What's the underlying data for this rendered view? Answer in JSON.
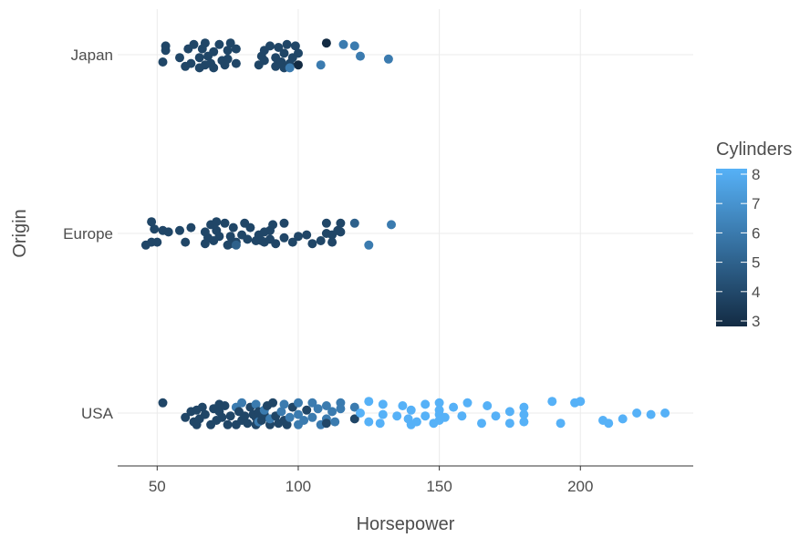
{
  "chart_data": {
    "type": "scatter",
    "title": "",
    "xlabel": "Horsepower",
    "ylabel": "Origin",
    "xlim": [
      36,
      240
    ],
    "x_ticks": [
      50,
      100,
      150,
      200
    ],
    "categories": [
      "USA",
      "Europe",
      "Japan"
    ],
    "grid": true,
    "legend": {
      "title": "Cylinders",
      "placement": "right",
      "min": 3,
      "max": 8,
      "ticks": [
        3,
        4,
        5,
        6,
        7,
        8
      ],
      "color_low": "#132b43",
      "color_high": "#56b1f7"
    },
    "series": [
      {
        "name": "Japan",
        "points": [
          [
            52,
            4,
            0.25
          ],
          [
            53,
            4,
            -0.15
          ],
          [
            53,
            4,
            -0.3
          ],
          [
            58,
            4,
            0.1
          ],
          [
            60,
            4,
            0.4
          ],
          [
            61,
            4,
            -0.2
          ],
          [
            62,
            4,
            0.3
          ],
          [
            63,
            4,
            -0.35
          ],
          [
            65,
            4,
            0.45
          ],
          [
            65,
            4,
            0.1
          ],
          [
            66,
            4,
            -0.2
          ],
          [
            67,
            4,
            0.35
          ],
          [
            67,
            4,
            -0.4
          ],
          [
            68,
            4,
            0.05
          ],
          [
            69,
            4,
            0.3
          ],
          [
            70,
            4,
            -0.1
          ],
          [
            70,
            4,
            0.45
          ],
          [
            72,
            4,
            -0.35
          ],
          [
            73,
            4,
            0.2
          ],
          [
            74,
            4,
            0.35
          ],
          [
            75,
            4,
            -0.15
          ],
          [
            75,
            4,
            0.15
          ],
          [
            76,
            4,
            -0.4
          ],
          [
            78,
            4,
            -0.2
          ],
          [
            78,
            4,
            0.3
          ],
          [
            86,
            4,
            0.35
          ],
          [
            87,
            4,
            0.05
          ],
          [
            88,
            4,
            -0.15
          ],
          [
            88,
            4,
            0.2
          ],
          [
            90,
            4,
            -0.3
          ],
          [
            92,
            4,
            0.4
          ],
          [
            92,
            4,
            0.1
          ],
          [
            93,
            4,
            -0.25
          ],
          [
            94,
            4,
            0.25
          ],
          [
            95,
            4,
            -0.05
          ],
          [
            95,
            4,
            0.45
          ],
          [
            96,
            4,
            -0.35
          ],
          [
            97,
            4,
            0.3
          ],
          [
            97,
            6,
            0.45
          ],
          [
            98,
            4,
            0.1
          ],
          [
            99,
            4,
            -0.3
          ],
          [
            100,
            3,
            0.35
          ],
          [
            100,
            4,
            -0.05
          ],
          [
            108,
            6,
            0.35
          ],
          [
            110,
            3,
            -0.4
          ],
          [
            116,
            6,
            -0.35
          ],
          [
            120,
            6,
            -0.3
          ],
          [
            122,
            6,
            0.05
          ],
          [
            132,
            6,
            0.15
          ]
        ]
      },
      {
        "name": "Europe",
        "points": [
          [
            46,
            4,
            0.4
          ],
          [
            48,
            4,
            0.3
          ],
          [
            48,
            4,
            -0.4
          ],
          [
            49,
            4,
            -0.15
          ],
          [
            50,
            4,
            0.3
          ],
          [
            52,
            4,
            -0.1
          ],
          [
            54,
            4,
            -0.05
          ],
          [
            58,
            4,
            -0.1
          ],
          [
            60,
            4,
            0.3
          ],
          [
            62,
            4,
            -0.2
          ],
          [
            67,
            4,
            0.35
          ],
          [
            67,
            4,
            -0.05
          ],
          [
            68,
            4,
            0.15
          ],
          [
            69,
            4,
            -0.3
          ],
          [
            70,
            4,
            0.25
          ],
          [
            71,
            4,
            -0.1
          ],
          [
            71,
            4,
            -0.4
          ],
          [
            72,
            4,
            0.1
          ],
          [
            74,
            4,
            -0.35
          ],
          [
            75,
            4,
            0.4
          ],
          [
            76,
            4,
            0.35
          ],
          [
            76,
            4,
            0.1
          ],
          [
            77,
            4,
            -0.2
          ],
          [
            78,
            4,
            0.3
          ],
          [
            78,
            5,
            0.4
          ],
          [
            80,
            4,
            0.05
          ],
          [
            81,
            4,
            -0.35
          ],
          [
            82,
            4,
            0.2
          ],
          [
            83,
            4,
            -0.2
          ],
          [
            85,
            4,
            0.25
          ],
          [
            86,
            4,
            0.05
          ],
          [
            87,
            4,
            0.25
          ],
          [
            88,
            4,
            -0.05
          ],
          [
            88,
            4,
            0.3
          ],
          [
            90,
            4,
            0.2
          ],
          [
            90,
            4,
            -0.1
          ],
          [
            91,
            4,
            -0.3
          ],
          [
            92,
            4,
            0.35
          ],
          [
            95,
            4,
            0.15
          ],
          [
            95,
            4,
            -0.35
          ],
          [
            98,
            4,
            0.3
          ],
          [
            100,
            4,
            0.1
          ],
          [
            103,
            4,
            0.05
          ],
          [
            105,
            4,
            0.35
          ],
          [
            108,
            4,
            0.25
          ],
          [
            110,
            4,
            -0.35
          ],
          [
            110,
            4,
            0.0
          ],
          [
            112,
            4,
            0.3
          ],
          [
            112,
            4,
            0.05
          ],
          [
            114,
            4,
            -0.1
          ],
          [
            115,
            4,
            -0.35
          ],
          [
            115,
            4,
            -0.05
          ],
          [
            120,
            5,
            -0.35
          ],
          [
            125,
            6,
            0.4
          ],
          [
            133,
            6,
            -0.3
          ]
        ]
      },
      {
        "name": "USA",
        "points": [
          [
            52,
            4,
            -0.35
          ],
          [
            60,
            4,
            0.15
          ],
          [
            62,
            4,
            -0.05
          ],
          [
            63,
            4,
            0.3
          ],
          [
            64,
            4,
            0.4
          ],
          [
            64,
            4,
            -0.1
          ],
          [
            65,
            4,
            0.2
          ],
          [
            66,
            4,
            -0.2
          ],
          [
            67,
            4,
            0.05
          ],
          [
            69,
            4,
            0.4
          ],
          [
            70,
            4,
            -0.15
          ],
          [
            71,
            4,
            0.25
          ],
          [
            72,
            4,
            -0.3
          ],
          [
            72,
            4,
            -0.05
          ],
          [
            73,
            4,
            0.15
          ],
          [
            74,
            4,
            -0.25
          ],
          [
            75,
            4,
            0.4
          ],
          [
            76,
            4,
            0.1
          ],
          [
            78,
            4,
            0.4
          ],
          [
            78,
            6,
            -0.2
          ],
          [
            79,
            4,
            -0.05
          ],
          [
            80,
            4,
            0.25
          ],
          [
            80,
            6,
            -0.35
          ],
          [
            81,
            4,
            0.1
          ],
          [
            82,
            4,
            0.35
          ],
          [
            83,
            4,
            -0.2
          ],
          [
            84,
            4,
            0.05
          ],
          [
            85,
            4,
            0.4
          ],
          [
            85,
            4,
            0.15
          ],
          [
            85,
            6,
            -0.3
          ],
          [
            86,
            4,
            -0.05
          ],
          [
            86,
            6,
            0.3
          ],
          [
            87,
            4,
            0.25
          ],
          [
            88,
            4,
            0.05
          ],
          [
            88,
            6,
            -0.1
          ],
          [
            89,
            4,
            -0.25
          ],
          [
            90,
            4,
            0.4
          ],
          [
            90,
            6,
            0.2
          ],
          [
            91,
            4,
            -0.35
          ],
          [
            92,
            4,
            0.1
          ],
          [
            93,
            4,
            0.35
          ],
          [
            94,
            6,
            -0.05
          ],
          [
            95,
            4,
            0.25
          ],
          [
            95,
            6,
            -0.3
          ],
          [
            96,
            4,
            0.4
          ],
          [
            97,
            6,
            0.15
          ],
          [
            98,
            4,
            -0.2
          ],
          [
            100,
            6,
            0.4
          ],
          [
            100,
            6,
            0.05
          ],
          [
            100,
            6,
            -0.35
          ],
          [
            102,
            6,
            0.25
          ],
          [
            103,
            4,
            -0.1
          ],
          [
            105,
            6,
            -0.35
          ],
          [
            105,
            6,
            0.15
          ],
          [
            107,
            6,
            -0.15
          ],
          [
            108,
            6,
            0.4
          ],
          [
            110,
            6,
            0.2
          ],
          [
            110,
            6,
            -0.25
          ],
          [
            110,
            4,
            0.35
          ],
          [
            112,
            6,
            -0.05
          ],
          [
            113,
            6,
            0.3
          ],
          [
            115,
            6,
            -0.35
          ],
          [
            115,
            6,
            -0.15
          ],
          [
            120,
            4,
            0.2
          ],
          [
            120,
            6,
            -0.2
          ],
          [
            122,
            8,
            0.0
          ],
          [
            125,
            8,
            -0.4
          ],
          [
            125,
            8,
            0.3
          ],
          [
            129,
            8,
            0.35
          ],
          [
            130,
            8,
            0.05
          ],
          [
            130,
            8,
            -0.3
          ],
          [
            135,
            8,
            0.1
          ],
          [
            137,
            8,
            -0.25
          ],
          [
            139,
            8,
            0.2
          ],
          [
            140,
            8,
            0.4
          ],
          [
            140,
            8,
            -0.1
          ],
          [
            142,
            8,
            0.3
          ],
          [
            145,
            8,
            -0.3
          ],
          [
            145,
            8,
            0.1
          ],
          [
            148,
            8,
            0.35
          ],
          [
            150,
            8,
            0.05
          ],
          [
            150,
            8,
            0.25
          ],
          [
            150,
            8,
            -0.1
          ],
          [
            150,
            8,
            -0.35
          ],
          [
            152,
            8,
            0.15
          ],
          [
            155,
            8,
            -0.2
          ],
          [
            158,
            8,
            0.1
          ],
          [
            160,
            8,
            -0.35
          ],
          [
            165,
            8,
            0.35
          ],
          [
            167,
            8,
            -0.25
          ],
          [
            170,
            8,
            0.1
          ],
          [
            175,
            8,
            0.35
          ],
          [
            175,
            8,
            -0.05
          ],
          [
            180,
            8,
            0.3
          ],
          [
            180,
            8,
            0.05
          ],
          [
            180,
            8,
            -0.2
          ],
          [
            190,
            8,
            -0.4
          ],
          [
            193,
            8,
            0.35
          ],
          [
            198,
            8,
            -0.35
          ],
          [
            200,
            8,
            -0.4
          ],
          [
            208,
            8,
            0.25
          ],
          [
            210,
            8,
            0.35
          ],
          [
            215,
            8,
            0.2
          ],
          [
            220,
            8,
            0.0
          ],
          [
            225,
            8,
            0.05
          ],
          [
            230,
            8,
            0.0
          ]
        ]
      }
    ]
  }
}
